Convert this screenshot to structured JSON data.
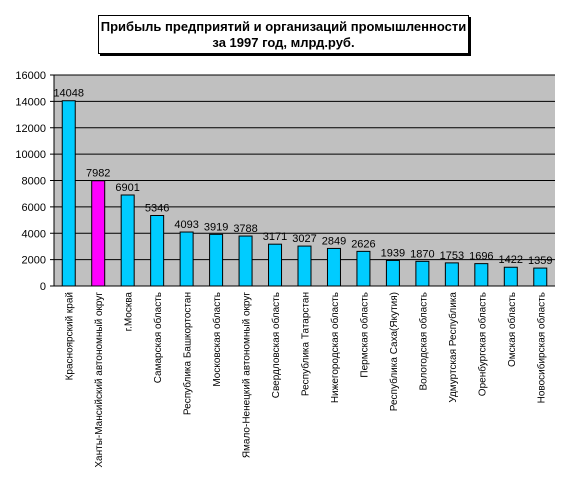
{
  "chart_data": {
    "type": "bar",
    "title_lines": [
      "Прибыль предприятий и организаций промышленности",
      "за 1997 год, млрд.руб."
    ],
    "categories": [
      "Красноярский край",
      "Ханты-Мансийский автономный округ",
      "г.Москва",
      "Самарская область",
      "Республика Башкортостан",
      "Московская область",
      "Ямало-Ненецкий автономный округ",
      "Свердловская область",
      "Республика Татарстан",
      "Нижегородская область",
      "Пермская область",
      "Республика Саха(Якутия)",
      "Вологодская область",
      "Удмуртская Республика",
      "Оренбургская область",
      "Омская область",
      "Новосибирская область"
    ],
    "values": [
      14048,
      7982,
      6901,
      5346,
      4093,
      3919,
      3788,
      3171,
      3027,
      2849,
      2626,
      1939,
      1870,
      1753,
      1696,
      1422,
      1359
    ],
    "data_labels": [
      "14048",
      "7982",
      "6901",
      "5346",
      "4093",
      "3919",
      "3788",
      "3171",
      "3027",
      "2849",
      "2626",
      "1939",
      "1870",
      "1753",
      "1696",
      "1422",
      "1359"
    ],
    "ylim": [
      0,
      16000
    ],
    "yticks": [
      0,
      2000,
      4000,
      6000,
      8000,
      10000,
      12000,
      14000,
      16000
    ],
    "ytick_labels": [
      "0",
      "2000",
      "4000",
      "6000",
      "8000",
      "10000",
      "12000",
      "14000",
      "16000"
    ],
    "grid": true,
    "plot_background": "#c0c0c0",
    "bar_color": "#00ccff",
    "highlight_color": "#ff00ff",
    "highlight_index": 1,
    "xlabel": "",
    "ylabel": ""
  }
}
